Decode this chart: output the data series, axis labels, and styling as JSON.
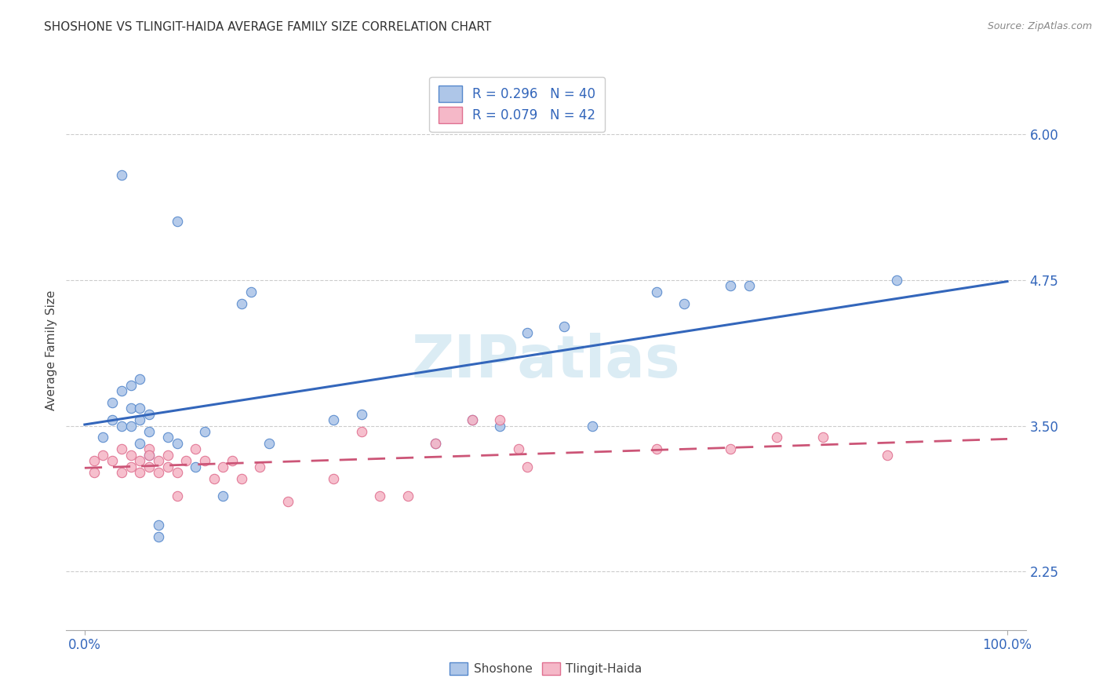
{
  "title": "SHOSHONE VS TLINGIT-HAIDA AVERAGE FAMILY SIZE CORRELATION CHART",
  "source": "Source: ZipAtlas.com",
  "ylabel": "Average Family Size",
  "xlim": [
    -0.02,
    1.02
  ],
  "ylim": [
    1.75,
    6.55
  ],
  "yticks": [
    2.25,
    3.5,
    4.75,
    6.0
  ],
  "xticks": [
    0.0,
    1.0
  ],
  "xticklabels": [
    "0.0%",
    "100.0%"
  ],
  "background_color": "#ffffff",
  "grid_color": "#cccccc",
  "shoshone_fill": "#aec6e8",
  "tlingit_fill": "#f5b8c8",
  "shoshone_edge": "#5588cc",
  "tlingit_edge": "#e07090",
  "blue_line_color": "#3366bb",
  "pink_line_color": "#cc5577",
  "watermark_color": "#cce4f0",
  "shoshone_x": [
    0.04,
    0.1,
    0.17,
    0.18,
    0.02,
    0.03,
    0.03,
    0.04,
    0.04,
    0.05,
    0.05,
    0.05,
    0.06,
    0.06,
    0.06,
    0.06,
    0.07,
    0.07,
    0.07,
    0.08,
    0.08,
    0.09,
    0.1,
    0.12,
    0.13,
    0.15,
    0.2,
    0.27,
    0.3,
    0.38,
    0.42,
    0.48,
    0.52,
    0.62,
    0.65,
    0.7,
    0.72,
    0.88,
    0.55,
    0.45
  ],
  "shoshone_y": [
    5.65,
    5.25,
    4.55,
    4.65,
    3.4,
    3.55,
    3.7,
    3.5,
    3.8,
    3.5,
    3.65,
    3.85,
    3.55,
    3.65,
    3.35,
    3.9,
    3.25,
    3.45,
    3.6,
    2.55,
    2.65,
    3.4,
    3.35,
    3.15,
    3.45,
    2.9,
    3.35,
    3.55,
    3.6,
    3.35,
    3.55,
    4.3,
    4.35,
    4.65,
    4.55,
    4.7,
    4.7,
    4.75,
    3.5,
    3.5
  ],
  "tlingit_x": [
    0.01,
    0.01,
    0.02,
    0.03,
    0.04,
    0.04,
    0.05,
    0.05,
    0.06,
    0.06,
    0.07,
    0.07,
    0.07,
    0.08,
    0.08,
    0.09,
    0.09,
    0.1,
    0.1,
    0.11,
    0.12,
    0.13,
    0.14,
    0.15,
    0.16,
    0.17,
    0.19,
    0.22,
    0.27,
    0.3,
    0.32,
    0.35,
    0.38,
    0.42,
    0.45,
    0.47,
    0.48,
    0.62,
    0.7,
    0.75,
    0.8,
    0.87
  ],
  "tlingit_y": [
    3.2,
    3.1,
    3.25,
    3.2,
    3.1,
    3.3,
    3.15,
    3.25,
    3.2,
    3.1,
    3.3,
    3.15,
    3.25,
    3.2,
    3.1,
    3.15,
    3.25,
    2.9,
    3.1,
    3.2,
    3.3,
    3.2,
    3.05,
    3.15,
    3.2,
    3.05,
    3.15,
    2.85,
    3.05,
    3.45,
    2.9,
    2.9,
    3.35,
    3.55,
    3.55,
    3.3,
    3.15,
    3.3,
    3.3,
    3.4,
    3.4,
    3.25
  ]
}
